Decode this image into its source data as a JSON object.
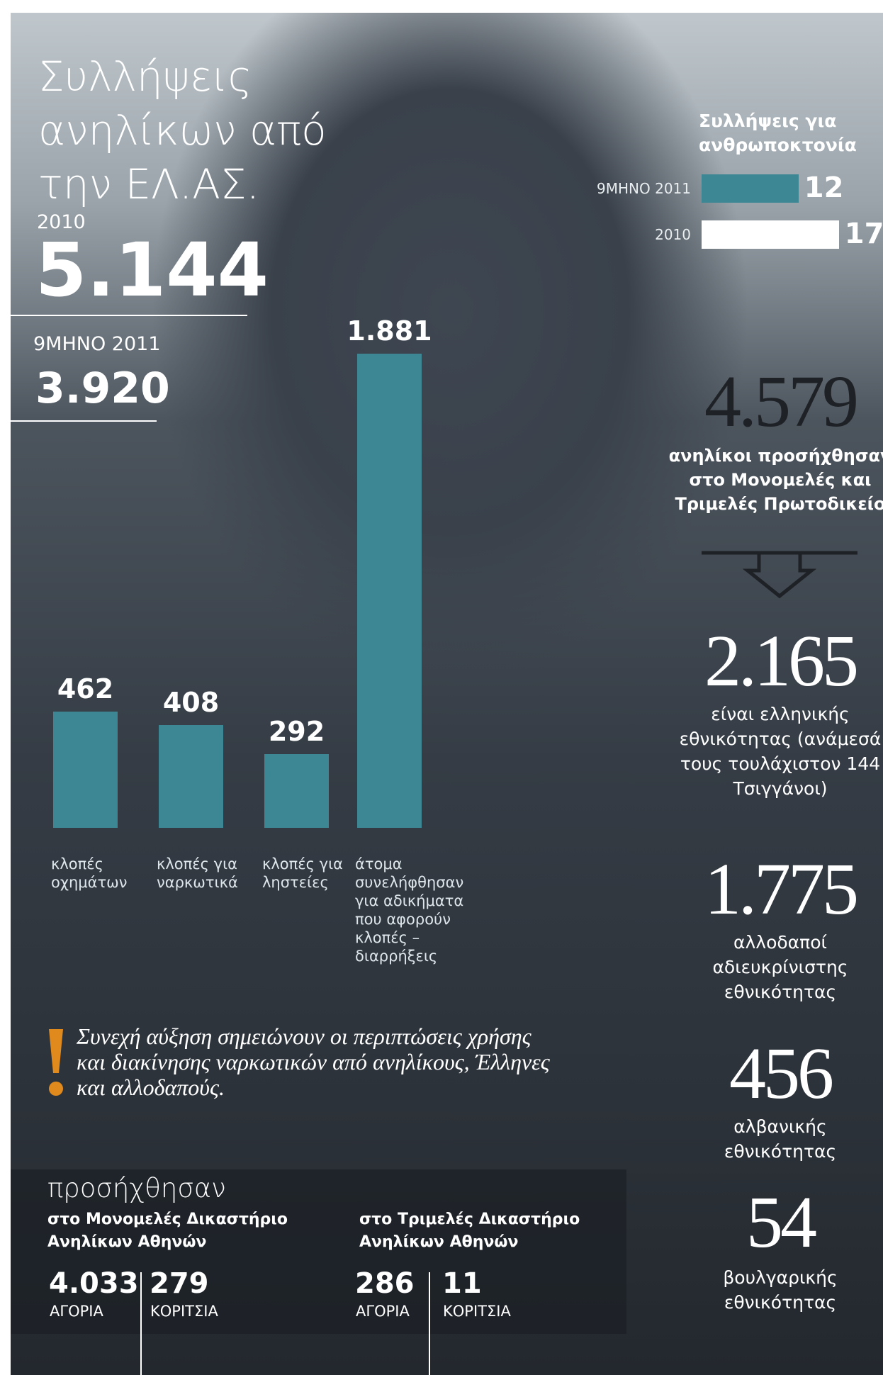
{
  "title": "Συλλήψεις ανηλίκων από την ΕΛ.ΑΣ.",
  "totals": [
    {
      "label": "2010",
      "value": "5.144"
    },
    {
      "label": "9ΜΗΝΟ 2011",
      "value": "3.920"
    }
  ],
  "chart_data": [
    {
      "type": "hbar",
      "title": "Συλλήψεις για ανθρωποκτονία",
      "categories": [
        "9ΜΗΝΟ 2011",
        "2010"
      ],
      "values": [
        12,
        17
      ],
      "colors": [
        "#3d8794",
        "#ffffff"
      ]
    },
    {
      "type": "bar",
      "categories": [
        "κλοπές οχημάτων",
        "κλοπές για ναρκωτικά",
        "κλοπές για ληστείες",
        "άτομα συνελήφθησαν για αδικήματα που αφορούν κλοπές – διαρρήξεις"
      ],
      "values": [
        462,
        408,
        292,
        1881
      ],
      "value_labels": [
        "462",
        "408",
        "292",
        "1.881"
      ],
      "color": "#3d8794"
    }
  ],
  "court_flow": [
    {
      "value": "4.579",
      "text": "ανηλίκοι προσήχθησαν στο Μονομελές και Τριμελές Πρωτοδικείο"
    },
    {
      "value": "2.165",
      "text": "είναι ελληνικής εθνικότητας (ανάμεσά τους τουλάχιστον 144 Τσιγγάνοι)"
    },
    {
      "value": "1.775",
      "text": "αλλοδαποί αδιευκρίνιστης εθνικότητας"
    },
    {
      "value": "456",
      "text": "αλβανικής εθνικότητας"
    },
    {
      "value": "54",
      "text": "βουλγαρικής εθνικότητας"
    }
  ],
  "note": "Συνεχή αύξηση σημειώνουν οι περιπτώσεις χρήσης και διακίνησης ναρκωτικών από ανηλίκους, Έλληνες και αλλοδαπούς.",
  "bottom": {
    "title": "προσήχθησαν",
    "courts": [
      {
        "name": "στο Μονομελές Δικαστήριο Ανηλίκων Αθηνών",
        "boys": "4.033",
        "boys_label": "ΑΓΟΡΙΑ",
        "girls": "279",
        "girls_label": "ΚΟΡΙΤΣΙΑ"
      },
      {
        "name": "στο Τριμελές Δικαστήριο Ανηλίκων Αθηνών",
        "boys": "286",
        "boys_label": "ΑΓΟΡΙΑ",
        "girls": "11",
        "girls_label": "ΚΟΡΙΤΣΙΑ"
      }
    ]
  }
}
